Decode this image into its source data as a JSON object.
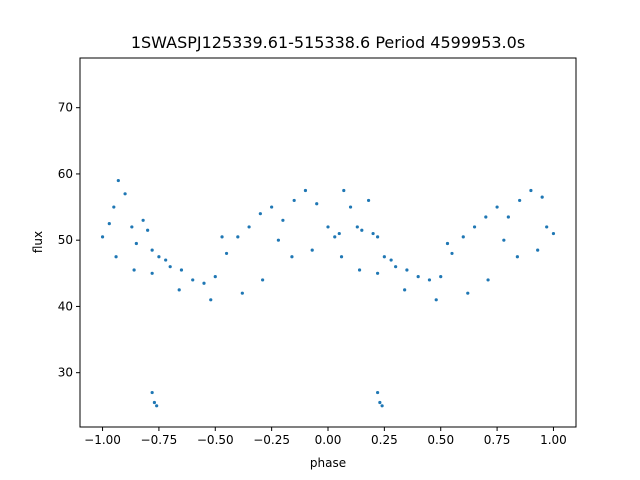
{
  "chart_data": {
    "type": "scatter",
    "title": "1SWASPJ125339.61-515338.6 Period 4599953.0s",
    "xlabel": "phase",
    "ylabel": "flux",
    "xlim": [
      -1.1,
      1.1
    ],
    "ylim": [
      21.8,
      77.5
    ],
    "xticks": [
      -1.0,
      -0.75,
      -0.5,
      -0.25,
      0.0,
      0.25,
      0.5,
      0.75,
      1.0
    ],
    "xtick_labels": [
      "−1.00",
      "−0.75",
      "−0.50",
      "−0.25",
      "0.00",
      "0.25",
      "0.50",
      "0.75",
      "1.00"
    ],
    "yticks": [
      30,
      40,
      50,
      60,
      70
    ],
    "ytick_labels": [
      "30",
      "40",
      "50",
      "60",
      "70"
    ],
    "grid": false,
    "marker_color": "#1f77b4",
    "series": [
      {
        "x": [
          -1.0,
          -0.97,
          -0.95,
          -0.93,
          -0.9,
          -0.87,
          -0.85,
          -0.82,
          -0.8,
          -0.78,
          -0.75,
          -0.72,
          -0.7,
          -0.65,
          -0.6,
          -0.55,
          -0.5,
          -0.47,
          -0.45,
          -0.4,
          -0.35,
          -0.3,
          -0.25,
          -0.2,
          -0.15,
          -0.1,
          -0.05,
          0.0,
          0.03,
          0.05,
          0.07,
          0.1,
          0.13,
          0.15,
          0.18,
          0.2,
          0.22,
          0.25,
          0.28,
          0.3,
          0.35,
          0.4,
          0.45,
          0.5,
          0.53,
          0.55,
          0.6,
          0.65,
          0.7,
          0.75,
          0.8,
          0.85,
          0.9,
          0.95,
          0.97,
          1.0
        ],
        "y": [
          50.5,
          52.5,
          55.0,
          59.0,
          57.0,
          52.0,
          49.5,
          53.0,
          51.5,
          48.5,
          47.5,
          47.0,
          46.0,
          45.5,
          44.0,
          43.5,
          44.5,
          50.5,
          48.0,
          50.5,
          52.0,
          54.0,
          55.0,
          53.0,
          56.0,
          57.5,
          55.5,
          52.0,
          50.5,
          51.0,
          57.5,
          55.0,
          52.0,
          51.5,
          56.0,
          51.0,
          50.5,
          47.5,
          47.0,
          46.0,
          45.5,
          44.5,
          44.0,
          44.5,
          49.5,
          48.0,
          50.5,
          52.0,
          53.5,
          55.0,
          53.5,
          56.0,
          57.5,
          56.5,
          52.0,
          51.0
        ]
      },
      {
        "x": [
          -0.94,
          -0.86,
          -0.78,
          -0.66,
          -0.52,
          -0.38,
          -0.29,
          -0.22,
          -0.16,
          -0.07,
          0.06,
          0.14,
          0.22,
          0.34,
          0.48,
          0.62,
          0.71,
          0.78,
          0.84,
          0.93
        ],
        "y": [
          47.5,
          45.5,
          45.0,
          42.5,
          41.0,
          42.0,
          44.0,
          50.0,
          47.5,
          48.5,
          47.5,
          45.5,
          45.0,
          42.5,
          41.0,
          42.0,
          44.0,
          50.0,
          47.5,
          48.5
        ]
      },
      {
        "x": [
          -0.78,
          -0.77,
          -0.76,
          0.22,
          0.23,
          0.24
        ],
        "y": [
          27.0,
          25.5,
          25.0,
          27.0,
          25.5,
          25.0
        ]
      }
    ]
  }
}
